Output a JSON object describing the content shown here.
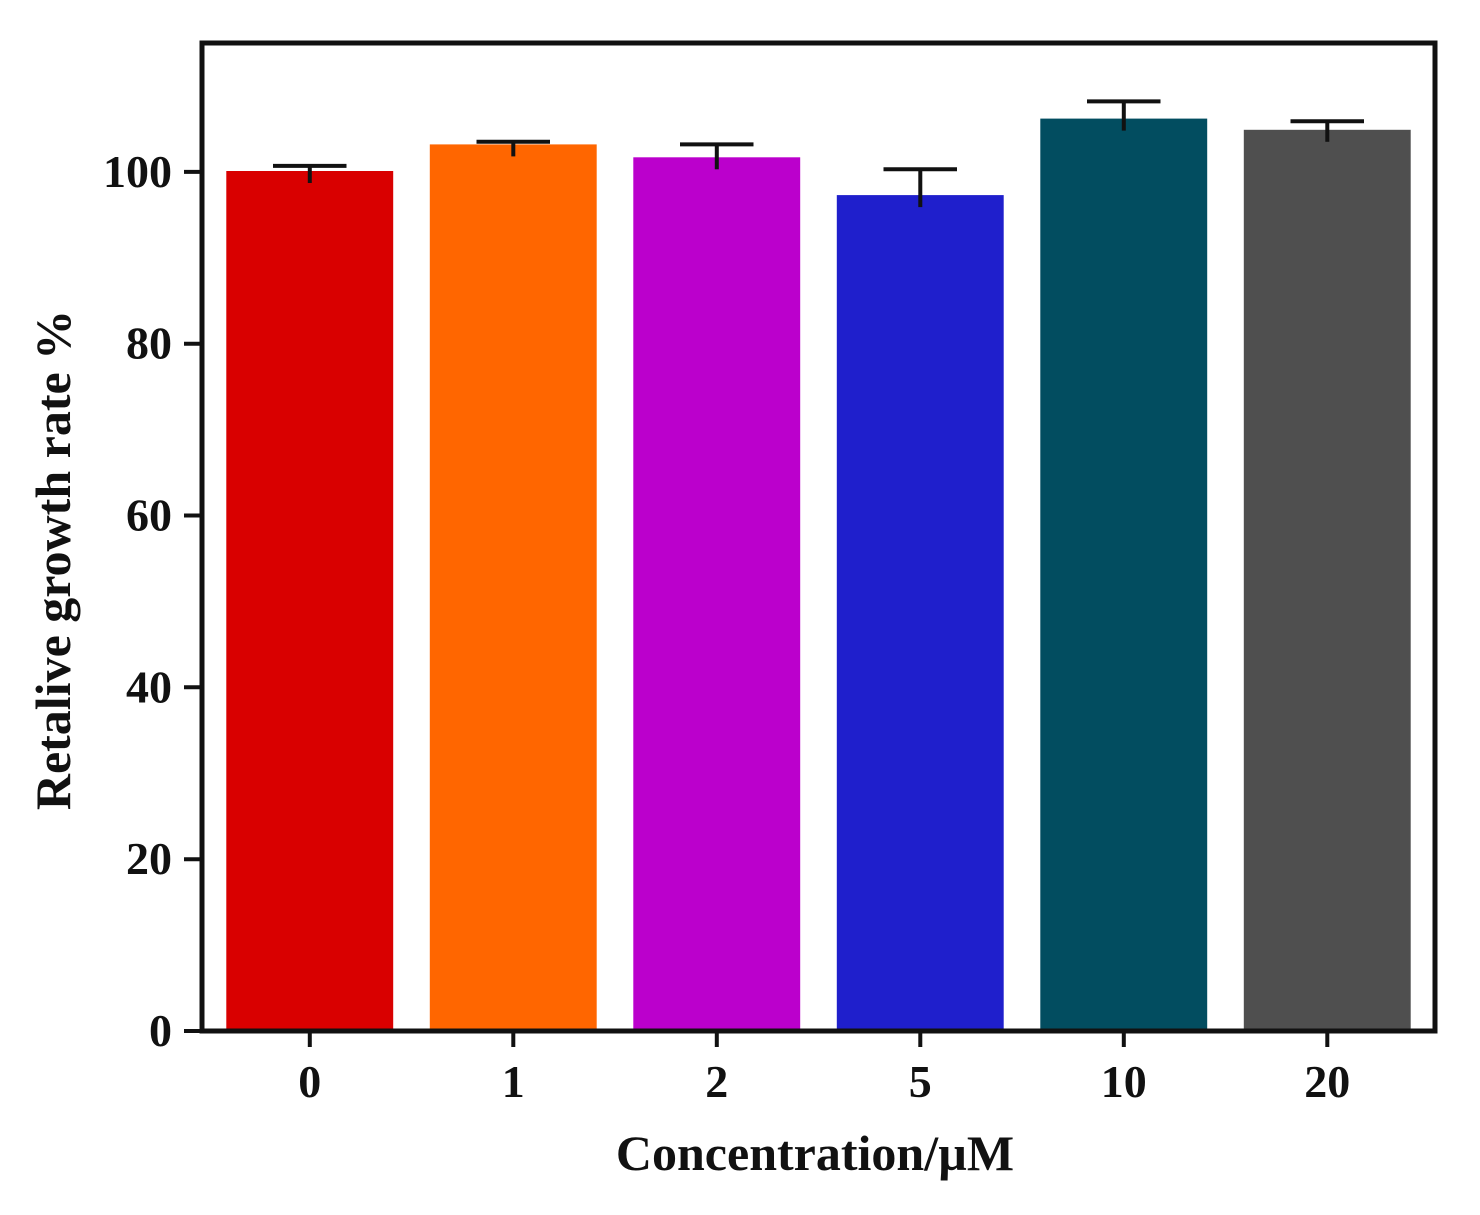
{
  "chart_data": {
    "type": "bar",
    "title": "",
    "xlabel": "Concentration/µM",
    "ylabel": "Retalive growth rate %",
    "categories": [
      "0",
      "1",
      "2",
      "5",
      "10",
      "20"
    ],
    "values": [
      100.1,
      103.2,
      101.7,
      97.3,
      106.2,
      104.9
    ],
    "errors": [
      0.6,
      0.3,
      1.5,
      3.0,
      2.0,
      1.0
    ],
    "colors": [
      "#d90000",
      "#ff6600",
      "#bb00cc",
      "#1f1fcc",
      "#024d60",
      "#4f4f4f"
    ],
    "ylim": [
      0,
      115
    ],
    "yticks": [
      0,
      20,
      40,
      60,
      80,
      100
    ],
    "grid": false,
    "legend": "none"
  }
}
